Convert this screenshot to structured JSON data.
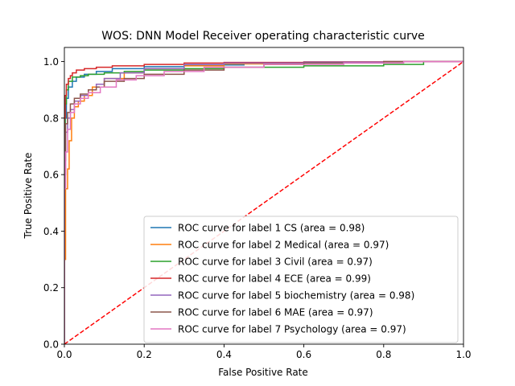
{
  "chart_data": {
    "type": "line",
    "title": "WOS: DNN Model Receiver operating characteristic curve",
    "xlabel": "False Positive Rate",
    "ylabel": "True Positive Rate",
    "xlim": [
      0.0,
      1.0
    ],
    "ylim": [
      0.0,
      1.05
    ],
    "x_ticks": [
      "0.0",
      "0.2",
      "0.4",
      "0.6",
      "0.8",
      "1.0"
    ],
    "y_ticks": [
      "0.0",
      "0.2",
      "0.4",
      "0.6",
      "0.8",
      "1.0"
    ],
    "grid": false,
    "legend_position": "lower-right",
    "series": [
      {
        "name": "ROC curve for label 1 CS (area = 0.98)",
        "color": "#1f77b4",
        "x": [
          0.0,
          0.002,
          0.005,
          0.01,
          0.02,
          0.03,
          0.05,
          0.08,
          0.12,
          0.2,
          0.3,
          0.45,
          0.6,
          0.8,
          1.0
        ],
        "y": [
          0.0,
          0.6,
          0.8,
          0.87,
          0.91,
          0.93,
          0.945,
          0.955,
          0.965,
          0.975,
          0.982,
          0.988,
          0.992,
          0.996,
          1.0
        ]
      },
      {
        "name": "ROC curve for label 2 Medical (area = 0.97)",
        "color": "#ff7f0e",
        "x": [
          0.0,
          0.003,
          0.008,
          0.012,
          0.018,
          0.025,
          0.035,
          0.05,
          0.07,
          0.1,
          0.15,
          0.2,
          0.3,
          0.4,
          0.6,
          0.8,
          1.0
        ],
        "y": [
          0.0,
          0.3,
          0.55,
          0.62,
          0.72,
          0.8,
          0.84,
          0.86,
          0.88,
          0.91,
          0.94,
          0.96,
          0.975,
          0.985,
          0.992,
          0.997,
          1.0
        ]
      },
      {
        "name": "ROC curve for label 3 Civil (area = 0.97)",
        "color": "#2ca02c",
        "x": [
          0.0,
          0.002,
          0.005,
          0.01,
          0.02,
          0.04,
          0.06,
          0.1,
          0.15,
          0.2,
          0.3,
          0.4,
          0.6,
          0.8,
          0.9,
          1.0
        ],
        "y": [
          0.0,
          0.7,
          0.85,
          0.9,
          0.93,
          0.945,
          0.95,
          0.955,
          0.96,
          0.965,
          0.97,
          0.975,
          0.98,
          0.985,
          0.99,
          1.0
        ]
      },
      {
        "name": "ROC curve for label 4 ECE (area = 0.99)",
        "color": "#d62728",
        "x": [
          0.0,
          0.002,
          0.005,
          0.01,
          0.015,
          0.02,
          0.03,
          0.05,
          0.08,
          0.12,
          0.2,
          0.3,
          0.4,
          0.6,
          0.8,
          1.0
        ],
        "y": [
          0.0,
          0.8,
          0.88,
          0.92,
          0.94,
          0.95,
          0.96,
          0.97,
          0.975,
          0.98,
          0.985,
          0.99,
          0.995,
          0.997,
          0.999,
          1.0
        ]
      },
      {
        "name": "ROC curve for label 5 biochemistry (area = 0.98)",
        "color": "#9467bd",
        "x": [
          0.0,
          0.003,
          0.008,
          0.015,
          0.025,
          0.04,
          0.06,
          0.08,
          0.1,
          0.14,
          0.2,
          0.3,
          0.4,
          0.6,
          0.8,
          1.0
        ],
        "y": [
          0.0,
          0.6,
          0.75,
          0.8,
          0.83,
          0.86,
          0.88,
          0.9,
          0.92,
          0.94,
          0.96,
          0.975,
          0.99,
          0.995,
          0.998,
          1.0
        ]
      },
      {
        "name": "ROC curve for label 6 MAE (area = 0.97)",
        "color": "#8c564b",
        "x": [
          0.0,
          0.003,
          0.008,
          0.015,
          0.025,
          0.04,
          0.06,
          0.08,
          0.1,
          0.15,
          0.2,
          0.3,
          0.4,
          0.5,
          0.6,
          0.8,
          1.0
        ],
        "y": [
          0.0,
          0.65,
          0.78,
          0.82,
          0.85,
          0.87,
          0.885,
          0.9,
          0.91,
          0.93,
          0.94,
          0.955,
          0.97,
          0.98,
          0.99,
          0.995,
          1.0
        ]
      },
      {
        "name": "ROC curve for label 7 Psychology  (area = 0.97)",
        "color": "#e377c2",
        "x": [
          0.0,
          0.003,
          0.008,
          0.015,
          0.025,
          0.04,
          0.06,
          0.09,
          0.13,
          0.18,
          0.25,
          0.35,
          0.5,
          0.7,
          0.85,
          1.0
        ],
        "y": [
          0.0,
          0.55,
          0.68,
          0.76,
          0.82,
          0.85,
          0.87,
          0.89,
          0.91,
          0.935,
          0.95,
          0.965,
          0.98,
          0.99,
          0.995,
          1.0
        ]
      }
    ],
    "reference_line": {
      "x": [
        0.0,
        1.0
      ],
      "y": [
        0.0,
        1.0
      ],
      "color": "#ff0000",
      "style": "dashed"
    }
  }
}
